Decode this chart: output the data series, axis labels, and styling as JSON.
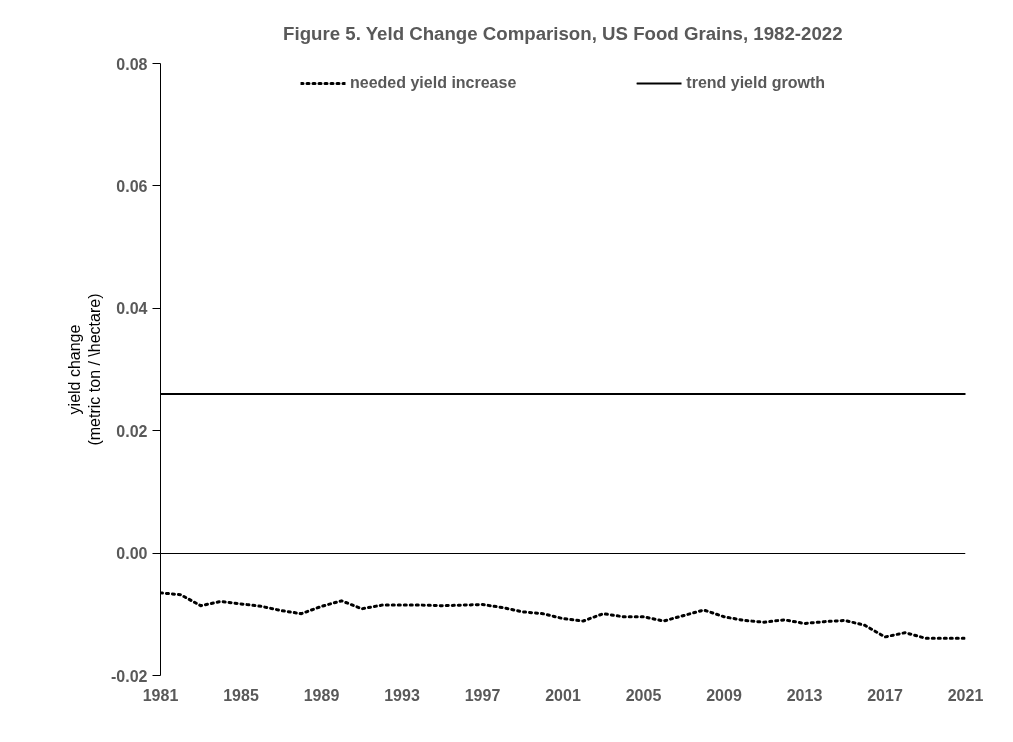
{
  "chart_data": {
    "type": "line",
    "title": "Figure 5. Yeld Change Comparison, US Food Grains, 1982-2022",
    "ylabel": "yield change\n(metric ton / \\hectare)",
    "x": [
      1981,
      1982,
      1983,
      1984,
      1985,
      1986,
      1987,
      1988,
      1989,
      1990,
      1991,
      1992,
      1993,
      1994,
      1995,
      1996,
      1997,
      1998,
      1999,
      2000,
      2001,
      2002,
      2003,
      2004,
      2005,
      2006,
      2007,
      2008,
      2009,
      2010,
      2011,
      2012,
      2013,
      2014,
      2015,
      2016,
      2017,
      2018,
      2019,
      2020,
      2021
    ],
    "series": [
      {
        "name": "needed yield increase",
        "color": "#000000",
        "line_style": "dotted",
        "values": [
          -0.0065,
          -0.0068,
          -0.0086,
          -0.0079,
          -0.0083,
          -0.0087,
          -0.0094,
          -0.0099,
          -0.0087,
          -0.0078,
          -0.0091,
          -0.0085,
          -0.0085,
          -0.0085,
          -0.0086,
          -0.0085,
          -0.0084,
          -0.0089,
          -0.0096,
          -0.0099,
          -0.0107,
          -0.0111,
          -0.0099,
          -0.0104,
          -0.0104,
          -0.0111,
          -0.0102,
          -0.0093,
          -0.0104,
          -0.011,
          -0.0113,
          -0.0109,
          -0.0115,
          -0.0112,
          -0.011,
          -0.0118,
          -0.0137,
          -0.013,
          -0.0139,
          -0.0139,
          -0.0139
        ]
      },
      {
        "name": "trend yield growth",
        "color": "#000000",
        "line_style": "solid",
        "x": [
          1981,
          2021
        ],
        "values": [
          0.026,
          0.026
        ]
      }
    ],
    "xlim": [
      1981,
      2021
    ],
    "xticks": [
      1981,
      1985,
      1989,
      1993,
      1997,
      2001,
      2005,
      2009,
      2013,
      2017,
      2021
    ],
    "ylim": [
      -0.02,
      0.08
    ],
    "yticks": [
      {
        "value": -0.02,
        "label": "-0.02"
      },
      {
        "value": 0,
        "label": "0.00"
      },
      {
        "value": 0.02,
        "label": "0.02"
      },
      {
        "value": 0.04,
        "label": "0.04"
      },
      {
        "value": 0.06,
        "label": "0.06"
      },
      {
        "value": 0.08,
        "label": "0.08"
      }
    ],
    "grid": false,
    "legend": "top",
    "marker": "none"
  }
}
